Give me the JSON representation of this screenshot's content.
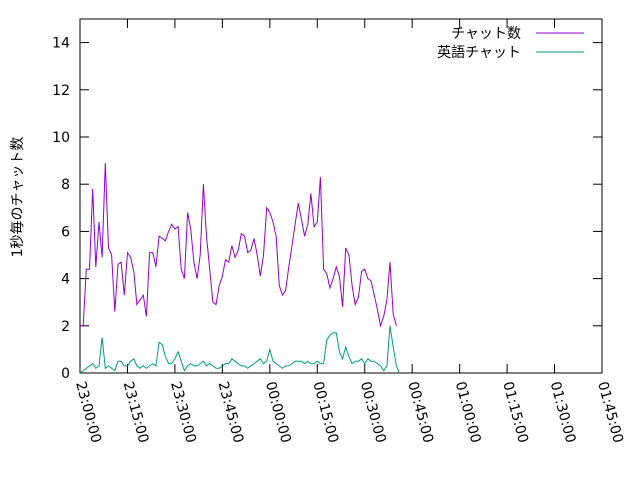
{
  "chart_data": {
    "type": "line",
    "title": "",
    "xlabel": "",
    "ylabel": "1秒毎のチャット数",
    "ylim": [
      0,
      15
    ],
    "yticks": [
      0,
      2,
      4,
      6,
      8,
      10,
      12,
      14
    ],
    "xlim": [
      "23:00:00",
      "01:45:00"
    ],
    "xtick_labels": [
      "23:00:00",
      "23:15:00",
      "23:30:00",
      "23:45:00",
      "00:00:00",
      "00:15:00",
      "00:30:00",
      "00:45:00",
      "01:00:00",
      "01:15:00",
      "01:30:00",
      "01:45:00"
    ],
    "legend_position": "top-right",
    "grid": false,
    "series": [
      {
        "name": "チャット数",
        "color": "#9400d3",
        "points": [
          [
            "23:00:00",
            2.0
          ],
          [
            "23:01:00",
            2.0
          ],
          [
            "23:02:00",
            4.4
          ],
          [
            "23:03:00",
            4.4
          ],
          [
            "23:04:00",
            7.8
          ],
          [
            "23:05:00",
            4.5
          ],
          [
            "23:06:00",
            6.4
          ],
          [
            "23:07:00",
            4.9
          ],
          [
            "23:08:00",
            8.9
          ],
          [
            "23:09:00",
            5.3
          ],
          [
            "23:10:00",
            5.0
          ],
          [
            "23:11:00",
            2.6
          ],
          [
            "23:12:00",
            4.6
          ],
          [
            "23:13:00",
            4.7
          ],
          [
            "23:14:00",
            3.3
          ],
          [
            "23:15:00",
            5.1
          ],
          [
            "23:16:00",
            4.9
          ],
          [
            "23:17:00",
            4.3
          ],
          [
            "23:18:00",
            2.9
          ],
          [
            "23:19:00",
            3.1
          ],
          [
            "23:20:00",
            3.3
          ],
          [
            "23:21:00",
            2.4
          ],
          [
            "23:22:00",
            5.1
          ],
          [
            "23:23:00",
            5.1
          ],
          [
            "23:24:00",
            4.5
          ],
          [
            "23:25:00",
            5.8
          ],
          [
            "23:26:00",
            5.7
          ],
          [
            "23:27:00",
            5.6
          ],
          [
            "23:28:00",
            6.0
          ],
          [
            "23:29:00",
            6.3
          ],
          [
            "23:30:00",
            6.1
          ],
          [
            "23:31:00",
            6.2
          ],
          [
            "23:32:00",
            4.4
          ],
          [
            "23:33:00",
            4.0
          ],
          [
            "23:34:00",
            6.8
          ],
          [
            "23:35:00",
            6.1
          ],
          [
            "23:36:00",
            4.7
          ],
          [
            "23:37:00",
            4.0
          ],
          [
            "23:38:00",
            5.0
          ],
          [
            "23:39:00",
            8.0
          ],
          [
            "23:40:00",
            5.8
          ],
          [
            "23:41:00",
            4.4
          ],
          [
            "23:42:00",
            3.0
          ],
          [
            "23:43:00",
            2.9
          ],
          [
            "23:44:00",
            3.7
          ],
          [
            "23:45:00",
            4.1
          ],
          [
            "23:46:00",
            4.8
          ],
          [
            "23:47:00",
            4.7
          ],
          [
            "23:48:00",
            5.4
          ],
          [
            "23:49:00",
            4.9
          ],
          [
            "23:50:00",
            5.2
          ],
          [
            "23:51:00",
            5.9
          ],
          [
            "23:52:00",
            5.8
          ],
          [
            "23:53:00",
            5.1
          ],
          [
            "23:54:00",
            5.2
          ],
          [
            "23:55:00",
            5.7
          ],
          [
            "23:56:00",
            5.0
          ],
          [
            "23:57:00",
            4.1
          ],
          [
            "23:58:00",
            5.0
          ],
          [
            "23:59:00",
            7.0
          ],
          [
            "00:00:00",
            6.8
          ],
          [
            "00:01:00",
            6.4
          ],
          [
            "00:02:00",
            5.8
          ],
          [
            "00:03:00",
            3.7
          ],
          [
            "00:04:00",
            3.3
          ],
          [
            "00:05:00",
            3.5
          ],
          [
            "00:06:00",
            4.5
          ],
          [
            "00:07:00",
            5.4
          ],
          [
            "00:08:00",
            6.3
          ],
          [
            "00:09:00",
            7.2
          ],
          [
            "00:10:00",
            6.5
          ],
          [
            "00:11:00",
            5.8
          ],
          [
            "00:12:00",
            6.3
          ],
          [
            "00:13:00",
            7.6
          ],
          [
            "00:14:00",
            6.2
          ],
          [
            "00:15:00",
            6.4
          ],
          [
            "00:16:00",
            8.3
          ],
          [
            "00:17:00",
            4.4
          ],
          [
            "00:18:00",
            4.2
          ],
          [
            "00:19:00",
            3.6
          ],
          [
            "00:20:00",
            4.0
          ],
          [
            "00:21:00",
            4.5
          ],
          [
            "00:22:00",
            4.1
          ],
          [
            "00:23:00",
            2.8
          ],
          [
            "00:24:00",
            5.3
          ],
          [
            "00:25:00",
            5.0
          ],
          [
            "00:26:00",
            3.7
          ],
          [
            "00:27:00",
            2.9
          ],
          [
            "00:28:00",
            3.2
          ],
          [
            "00:29:00",
            4.3
          ],
          [
            "00:30:00",
            4.4
          ],
          [
            "00:31:00",
            4.0
          ],
          [
            "00:32:00",
            3.9
          ],
          [
            "00:33:00",
            3.3
          ],
          [
            "00:34:00",
            2.7
          ],
          [
            "00:35:00",
            2.0
          ],
          [
            "00:36:00",
            2.4
          ],
          [
            "00:37:00",
            3.1
          ],
          [
            "00:38:00",
            4.7
          ],
          [
            "00:39:00",
            2.5
          ],
          [
            "00:40:00",
            2.0
          ]
        ]
      },
      {
        "name": "英語チャット",
        "color": "#009e73",
        "points": [
          [
            "23:00:00",
            0.0
          ],
          [
            "23:01:00",
            0.1
          ],
          [
            "23:02:00",
            0.2
          ],
          [
            "23:03:00",
            0.3
          ],
          [
            "23:04:00",
            0.4
          ],
          [
            "23:05:00",
            0.2
          ],
          [
            "23:06:00",
            0.3
          ],
          [
            "23:07:00",
            1.5
          ],
          [
            "23:08:00",
            0.2
          ],
          [
            "23:09:00",
            0.3
          ],
          [
            "23:10:00",
            0.2
          ],
          [
            "23:11:00",
            0.1
          ],
          [
            "23:12:00",
            0.5
          ],
          [
            "23:13:00",
            0.5
          ],
          [
            "23:14:00",
            0.3
          ],
          [
            "23:15:00",
            0.3
          ],
          [
            "23:16:00",
            0.5
          ],
          [
            "23:17:00",
            0.6
          ],
          [
            "23:18:00",
            0.3
          ],
          [
            "23:19:00",
            0.2
          ],
          [
            "23:20:00",
            0.3
          ],
          [
            "23:21:00",
            0.2
          ],
          [
            "23:22:00",
            0.3
          ],
          [
            "23:23:00",
            0.4
          ],
          [
            "23:24:00",
            0.3
          ],
          [
            "23:25:00",
            1.3
          ],
          [
            "23:26:00",
            1.2
          ],
          [
            "23:27:00",
            0.7
          ],
          [
            "23:28:00",
            0.4
          ],
          [
            "23:29:00",
            0.4
          ],
          [
            "23:30:00",
            0.6
          ],
          [
            "23:31:00",
            0.9
          ],
          [
            "23:32:00",
            0.5
          ],
          [
            "23:33:00",
            0.1
          ],
          [
            "23:34:00",
            0.3
          ],
          [
            "23:35:00",
            0.4
          ],
          [
            "23:36:00",
            0.3
          ],
          [
            "23:37:00",
            0.3
          ],
          [
            "23:38:00",
            0.4
          ],
          [
            "23:39:00",
            0.5
          ],
          [
            "23:40:00",
            0.3
          ],
          [
            "23:41:00",
            0.4
          ],
          [
            "23:42:00",
            0.3
          ],
          [
            "23:43:00",
            0.2
          ],
          [
            "23:44:00",
            0.2
          ],
          [
            "23:45:00",
            0.3
          ],
          [
            "23:46:00",
            0.4
          ],
          [
            "23:47:00",
            0.4
          ],
          [
            "23:48:00",
            0.6
          ],
          [
            "23:49:00",
            0.5
          ],
          [
            "23:50:00",
            0.4
          ],
          [
            "23:51:00",
            0.3
          ],
          [
            "23:52:00",
            0.3
          ],
          [
            "23:53:00",
            0.2
          ],
          [
            "23:54:00",
            0.3
          ],
          [
            "23:55:00",
            0.4
          ],
          [
            "23:56:00",
            0.5
          ],
          [
            "23:57:00",
            0.6
          ],
          [
            "23:58:00",
            0.4
          ],
          [
            "23:59:00",
            0.5
          ],
          [
            "00:00:00",
            1.0
          ],
          [
            "00:01:00",
            0.5
          ],
          [
            "00:02:00",
            0.4
          ],
          [
            "00:03:00",
            0.3
          ],
          [
            "00:04:00",
            0.2
          ],
          [
            "00:05:00",
            0.3
          ],
          [
            "00:06:00",
            0.3
          ],
          [
            "00:07:00",
            0.4
          ],
          [
            "00:08:00",
            0.5
          ],
          [
            "00:09:00",
            0.5
          ],
          [
            "00:10:00",
            0.5
          ],
          [
            "00:11:00",
            0.4
          ],
          [
            "00:12:00",
            0.5
          ],
          [
            "00:13:00",
            0.4
          ],
          [
            "00:14:00",
            0.4
          ],
          [
            "00:15:00",
            0.5
          ],
          [
            "00:16:00",
            0.4
          ],
          [
            "00:17:00",
            0.4
          ],
          [
            "00:18:00",
            1.4
          ],
          [
            "00:19:00",
            1.6
          ],
          [
            "00:20:00",
            1.7
          ],
          [
            "00:21:00",
            1.7
          ],
          [
            "00:22:00",
            0.9
          ],
          [
            "00:23:00",
            0.6
          ],
          [
            "00:24:00",
            1.1
          ],
          [
            "00:25:00",
            0.7
          ],
          [
            "00:26:00",
            0.4
          ],
          [
            "00:27:00",
            0.5
          ],
          [
            "00:28:00",
            0.5
          ],
          [
            "00:29:00",
            0.6
          ],
          [
            "00:30:00",
            0.4
          ],
          [
            "00:31:00",
            0.6
          ],
          [
            "00:32:00",
            0.5
          ],
          [
            "00:33:00",
            0.5
          ],
          [
            "00:34:00",
            0.4
          ],
          [
            "00:35:00",
            0.3
          ],
          [
            "00:36:00",
            0.1
          ],
          [
            "00:37:00",
            0.3
          ],
          [
            "00:38:00",
            2.0
          ],
          [
            "00:39:00",
            1.1
          ],
          [
            "00:40:00",
            0.3
          ],
          [
            "00:41:00",
            0.0
          ]
        ]
      }
    ]
  }
}
